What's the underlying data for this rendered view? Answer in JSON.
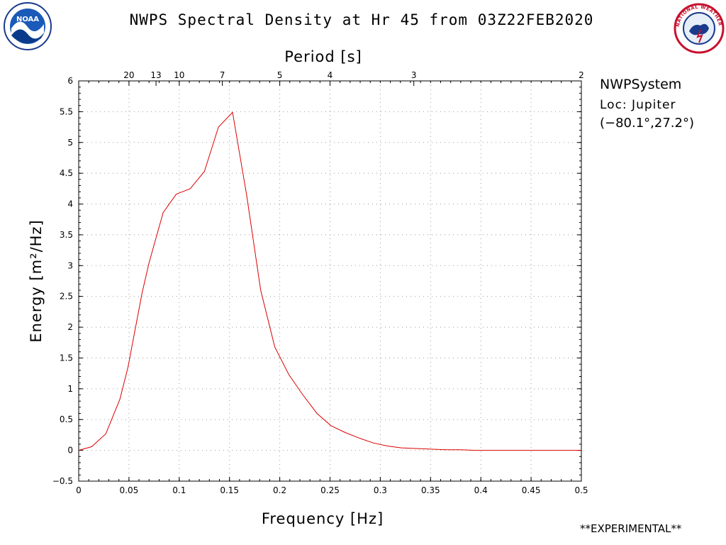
{
  "header": {
    "title": "NWPS Spectral Density at Hr 45 from 03Z22FEB2020"
  },
  "info": {
    "system": "NWPSystem",
    "location": "Loc: Jupiter",
    "coords": "(−80.1°,27.2°)"
  },
  "footer": {
    "experimental": "**EXPERIMENTAL**"
  },
  "logos": {
    "noaa_text": "NOAA",
    "nws_text": "NATIONAL WEATHER SERVICE"
  },
  "chart_data": {
    "type": "line",
    "title": "NWPS Spectral Density at Hr 45 from 03Z22FEB2020",
    "xlabel": "Frequency [Hz]",
    "ylabel": "Energy [m²/Hz]",
    "x2label": "Period [s]",
    "xlim": [
      0,
      0.5
    ],
    "ylim": [
      -0.5,
      6
    ],
    "xticks": [
      0,
      0.05,
      0.1,
      0.15,
      0.2,
      0.25,
      0.3,
      0.35,
      0.4,
      0.45,
      0.5
    ],
    "xtick_labels": [
      "0",
      "0.05",
      "0.1",
      "0.15",
      "0.2",
      "0.25",
      "0.3",
      "0.35",
      "0.4",
      "0.45",
      "0.5"
    ],
    "yticks": [
      -0.5,
      0,
      0.5,
      1,
      1.5,
      2,
      2.5,
      3,
      3.5,
      4,
      4.5,
      5,
      5.5,
      6
    ],
    "ytick_labels": [
      "−0.5",
      "0",
      "0.5",
      "1",
      "1.5",
      "2",
      "2.5",
      "3",
      "3.5",
      "4",
      "4.5",
      "5",
      "5.5",
      "6"
    ],
    "period_ticks": [
      20,
      13,
      10,
      7,
      5,
      4,
      3,
      2
    ],
    "grid": true,
    "line_color": "#dd0000",
    "series": [
      {
        "x": [
          0.0,
          0.013,
          0.027,
          0.041,
          0.049,
          0.056,
          0.063,
          0.07,
          0.084,
          0.097,
          0.111,
          0.125,
          0.139,
          0.153,
          0.167,
          0.181,
          0.195,
          0.209,
          0.223,
          0.237,
          0.251,
          0.265,
          0.279,
          0.293,
          0.307,
          0.321,
          0.335,
          0.35,
          0.365,
          0.38,
          0.395,
          0.42,
          0.45,
          0.48,
          0.5
        ],
        "y": [
          0.0,
          0.06,
          0.27,
          0.83,
          1.35,
          1.95,
          2.55,
          3.05,
          3.86,
          4.16,
          4.25,
          4.53,
          5.25,
          5.49,
          4.15,
          2.6,
          1.68,
          1.23,
          0.9,
          0.6,
          0.4,
          0.29,
          0.2,
          0.12,
          0.07,
          0.04,
          0.03,
          0.02,
          0.01,
          0.01,
          0.0,
          0.0,
          0.0,
          0.0,
          0.0
        ]
      }
    ]
  }
}
